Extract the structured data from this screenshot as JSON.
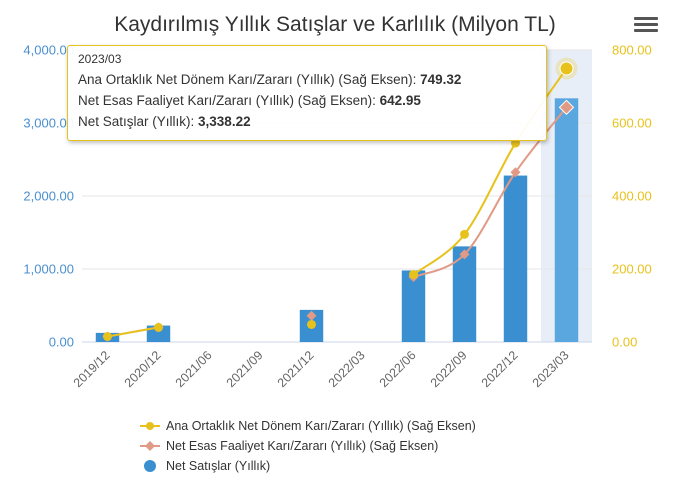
{
  "title": "Kaydırılmış Yıllık Satışlar ve Karlılık (Milyon TL)",
  "menu_icon": "hamburger-menu-icon",
  "colors": {
    "sales": "#3a8fd0",
    "sales_highlight": "#5aa7e0",
    "profit": "#e8c21c",
    "operating": "#e09a86",
    "left_axis": "#4a8fd0",
    "right_axis": "#e8c21c",
    "highlight_band": "#e8eef7"
  },
  "tooltip": {
    "date": "2023/03",
    "rows": [
      {
        "label": "Ana Ortaklık Net Dönem Karı/Zararı (Yıllık) (Sağ Eksen): ",
        "value": "749.32"
      },
      {
        "label": "Net Esas Faaliyet Karı/Zararı (Yıllık) (Sağ Eksen): ",
        "value": "642.95"
      },
      {
        "label": "Net Satışlar (Yıllık): ",
        "value": "3,338.22"
      }
    ]
  },
  "chart_data": {
    "type": "bar",
    "categories": [
      "2019/12",
      "2020/12",
      "2021/06",
      "2021/09",
      "2021/12",
      "2022/03",
      "2022/06",
      "2022/09",
      "2022/12",
      "2023/03"
    ],
    "left_axis": {
      "ylim": [
        0,
        4000
      ],
      "ticks": [
        "0.00",
        "1,000.00",
        "2,000.00",
        "3,000.00",
        "4,000.00"
      ]
    },
    "right_axis": {
      "ylim": [
        0,
        800
      ],
      "ticks": [
        "0.00",
        "200.00",
        "400.00",
        "600.00",
        "800.00"
      ]
    },
    "highlighted_category": "2023/03",
    "series": [
      {
        "name": "Ana Ortaklık Net Dönem Karı/Zararı (Yıllık) (Sağ Eksen)",
        "type": "line",
        "axis": "right",
        "marker": "circle",
        "values": [
          15,
          40,
          null,
          null,
          48,
          null,
          185,
          295,
          545,
          749.32
        ]
      },
      {
        "name": "Net Esas Faaliyet Karı/Zararı (Yıllık) (Sağ Eksen)",
        "type": "line",
        "axis": "right",
        "marker": "diamond",
        "values": [
          15,
          40,
          null,
          null,
          72,
          null,
          178,
          240,
          465,
          642.95
        ]
      },
      {
        "name": "Net Satışlar (Yıllık)",
        "type": "column",
        "axis": "left",
        "marker": "circle",
        "values": [
          125,
          225,
          null,
          null,
          440,
          null,
          980,
          1310,
          2280,
          3338.22
        ]
      }
    ]
  }
}
